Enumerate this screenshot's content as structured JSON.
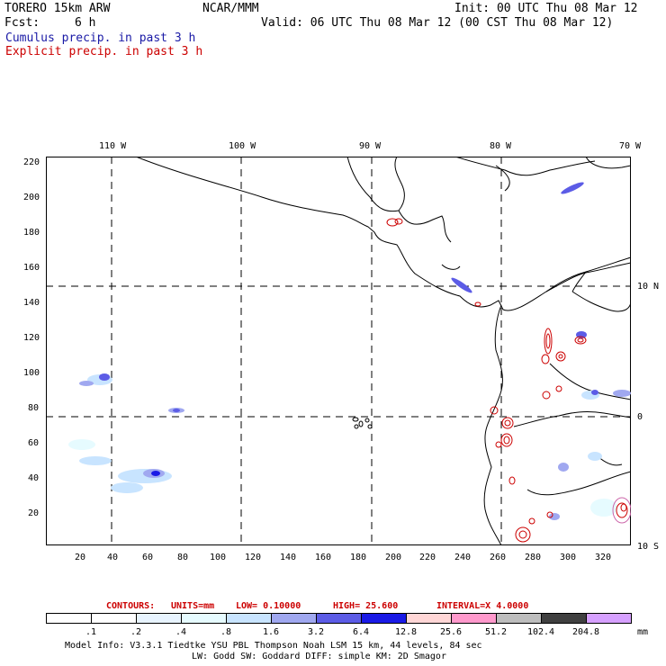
{
  "header": {
    "model_title": "TORERO  15km ARW",
    "org": "NCAR/MMM",
    "init": "Init: 00 UTC Thu 08 Mar 12",
    "fcst_label": "Fcst:",
    "fcst_value": "6 h",
    "valid": "Valid: 06 UTC Thu 08 Mar 12 (00 CST Thu 08 Mar 12)",
    "legend_cumulus": "Cumulus precip. in past 3 h",
    "legend_explicit": "Explicit precip. in past 3 h"
  },
  "colors": {
    "cumulus": "#1a1aa6",
    "explicit": "#cc0000",
    "gridline": "#000000"
  },
  "axes": {
    "top_lon_labels": [
      "110 W",
      "100 W",
      "90 W",
      "80 W",
      "70 W"
    ],
    "right_lat_labels": [
      "10 N",
      "0",
      "10 S"
    ],
    "left_y_ticks": [
      "220",
      "200",
      "180",
      "160",
      "140",
      "120",
      "100",
      "80",
      "60",
      "40",
      "20"
    ],
    "bottom_x_ticks": [
      "20",
      "40",
      "60",
      "80",
      "100",
      "120",
      "140",
      "160",
      "180",
      "200",
      "220",
      "240",
      "260",
      "280",
      "300",
      "320"
    ]
  },
  "contour_info": {
    "contours": "CONTOURS:",
    "units": "UNITS=mm",
    "low": "LOW= 0.10000",
    "high": "HIGH= 25.600",
    "interval": "INTERVAL=X  4.0000"
  },
  "colorbar": {
    "unit": "mm",
    "labels": [
      ".1",
      ".2",
      ".4",
      ".8",
      "1.6",
      "3.2",
      "6.4",
      "12.8",
      "25.6",
      "51.2",
      "102.4",
      "204.8"
    ],
    "colors": [
      "#ffffff",
      "#ffffff",
      "#e8f4ff",
      "#e6fbff",
      "#c8e4ff",
      "#a0a8f0",
      "#5c5ce6",
      "#1a1ae6",
      "#ffd6d6",
      "#ff99cc",
      "#bdbdbd",
      "#404040",
      "#d6a0ff"
    ]
  },
  "footer": {
    "line1": "Model Info: V3.3.1   Tiedtke YSU PBL  Thompson    Noah LSM  15 km,    44 levels,    84 sec",
    "line2": "LW: Godd SW: Goddard DIFF: simple KM: 2D Smagor"
  }
}
